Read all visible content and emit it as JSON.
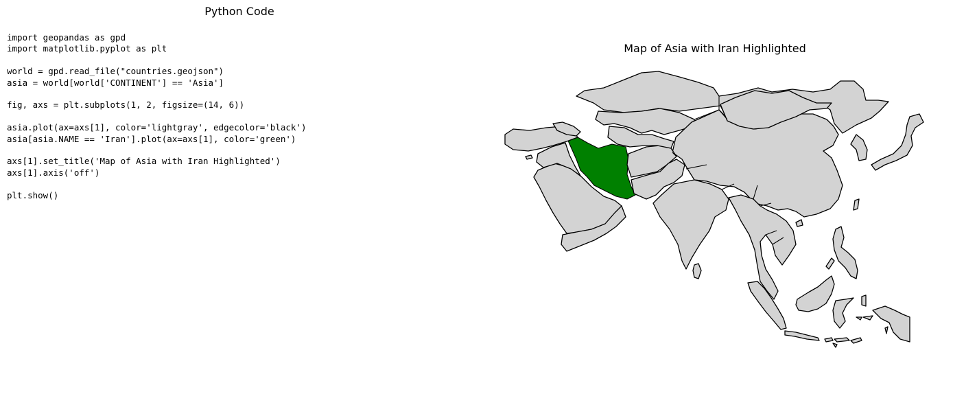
{
  "left_panel": {
    "title": "Python Code",
    "code": "import geopandas as gpd\nimport matplotlib.pyplot as plt\n\nworld = gpd.read_file(\"countries.geojson\")\nasia = world[world['CONTINENT'] == 'Asia']\n\nfig, axs = plt.subplots(1, 2, figsize=(14, 6))\n\nasia.plot(ax=axs[1], color='lightgray', edgecolor='black')\nasia[asia.NAME == 'Iran'].plot(ax=axs[1], color='green')\n\naxs[1].set_title('Map of Asia with Iran Highlighted')\naxs[1].axis('off')\n\nplt.show()"
  },
  "map": {
    "title": "Map of Asia with Iran Highlighted",
    "base_color": "#d3d3d3",
    "edge_color": "#000000",
    "highlight_color": "#008000",
    "highlighted_country": "Iran",
    "axis": "off"
  }
}
